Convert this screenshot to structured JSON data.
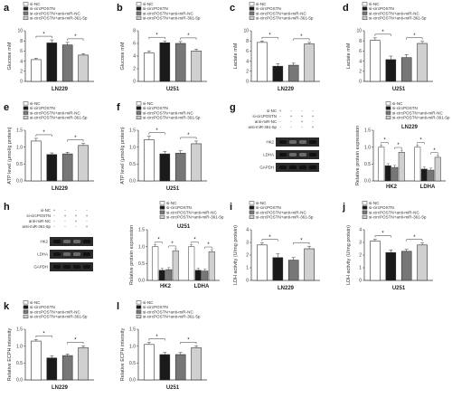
{
  "groups_four": [
    "si-NC",
    "si-circPOSTN",
    "si-circPOSTN+anti-miR-NC",
    "si-circPOSTN+anti-miR-361-5p"
  ],
  "colors": {
    "bar_fills": [
      "#ffffff",
      "#1a1a1a",
      "#777777",
      "#d0d0d0"
    ],
    "axis": "#333333"
  },
  "chart_data": [
    {
      "id": "a",
      "type": "bar",
      "label": "a",
      "cell": "LN229",
      "ylabel": "Glucose mM",
      "yticks": [
        "0",
        "2",
        "4",
        "6",
        "8",
        "10"
      ],
      "ylim": [
        0,
        10
      ],
      "legend": [
        "si-NC",
        "si-circPOSTN",
        "si-circPOSTN+anti-miR-NC",
        "si-circPOSTN+anti-miR-361-5p"
      ],
      "values": [
        4.3,
        7.6,
        7.2,
        5.2
      ],
      "errors": [
        0.3,
        0.6,
        0.5,
        0.3
      ],
      "sig": [
        [
          0,
          1,
          "*"
        ],
        [
          2,
          3,
          "*"
        ]
      ]
    },
    {
      "id": "b",
      "type": "bar",
      "label": "b",
      "cell": "U251",
      "ylabel": "Glucose mM",
      "yticks": [
        "0",
        "2",
        "4",
        "6",
        "8"
      ],
      "ylim": [
        0,
        8
      ],
      "legend": [
        "si-NC",
        "si-circPOSTN",
        "si-circPOSTN+anti-miR-NC",
        "si-circPOSTN+anti-miR-361-5p"
      ],
      "values": [
        4.5,
        6.1,
        6.0,
        4.8
      ],
      "errors": [
        0.3,
        0.3,
        0.3,
        0.3
      ],
      "sig": [
        [
          0,
          1,
          "*"
        ],
        [
          2,
          3,
          "*"
        ]
      ]
    },
    {
      "id": "c",
      "type": "bar",
      "label": "c",
      "cell": "LN229",
      "ylabel": "Lactate mM",
      "yticks": [
        "0",
        "2",
        "4",
        "6",
        "8",
        "10"
      ],
      "ylim": [
        0,
        10
      ],
      "legend": [
        "si-NC",
        "si-circPOSTN",
        "si-circPOSTN+anti-miR-NC",
        "si-circPOSTN+anti-miR-361-5p"
      ],
      "values": [
        7.7,
        3.0,
        3.2,
        7.4
      ],
      "errors": [
        0.3,
        0.5,
        0.4,
        0.3
      ],
      "sig": [
        [
          0,
          1,
          "*"
        ],
        [
          2,
          3,
          "*"
        ]
      ]
    },
    {
      "id": "d",
      "type": "bar",
      "label": "d",
      "cell": "U251",
      "ylabel": "Lactate mM",
      "yticks": [
        "0",
        "2",
        "4",
        "6",
        "8",
        "10"
      ],
      "ylim": [
        0,
        10
      ],
      "legend": [
        "si-NC",
        "si-circPOSTN",
        "si-circPOSTN+anti-miR-NC",
        "si-circPOSTN+anti-miR-361-5p"
      ],
      "values": [
        8.1,
        4.3,
        4.7,
        7.5
      ],
      "errors": [
        0.5,
        0.7,
        0.6,
        0.4
      ],
      "sig": [
        [
          0,
          1,
          "*"
        ],
        [
          2,
          3,
          "*"
        ]
      ]
    },
    {
      "id": "e",
      "type": "bar",
      "label": "e",
      "cell": "LN229",
      "ylabel": "ATP level (μmol/g protein)",
      "yticks": [
        "0.0",
        "0.5",
        "1.0",
        "1.5"
      ],
      "ylim": [
        0,
        1.5
      ],
      "legend": [
        "si-NC",
        "si-circPOSTN",
        "si-circPOSTN+anti-miR-NC",
        "si-circPOSTN+anti-miR-361-5p"
      ],
      "values": [
        1.18,
        0.78,
        0.8,
        1.05
      ],
      "errors": [
        0.08,
        0.05,
        0.05,
        0.06
      ],
      "sig": [
        [
          0,
          1,
          "*"
        ],
        [
          2,
          3,
          "*"
        ]
      ]
    },
    {
      "id": "f",
      "type": "bar",
      "label": "f",
      "cell": "U251",
      "ylabel": "ATP level (μmol/g protein)",
      "yticks": [
        "0.0",
        "0.5",
        "1.0",
        "1.5"
      ],
      "ylim": [
        0,
        1.5
      ],
      "legend": [
        "si-NC",
        "si-circPOSTN",
        "si-circPOSTN+anti-miR-NC",
        "si-circPOSTN+anti-miR-361-5p"
      ],
      "values": [
        1.22,
        0.8,
        0.82,
        1.1
      ],
      "errors": [
        0.1,
        0.07,
        0.07,
        0.08
      ],
      "sig": [
        [
          0,
          1,
          "*"
        ],
        [
          2,
          3,
          "*"
        ]
      ]
    },
    {
      "id": "g",
      "type": "bar",
      "label": "",
      "cell": "LN229",
      "ylabel": "Relative protein expression",
      "yticks": [
        "0.0",
        "0.5",
        "1.0",
        "1.5"
      ],
      "ylim": [
        0,
        1.5
      ],
      "legend": [
        "si-NC",
        "si-circPOSTN",
        "si-circPOSTN+anti-miR-NC",
        "si-circPOSTN+anti-miR-361-5p"
      ],
      "categories": [
        "HK2",
        "LDHA"
      ],
      "series": [
        {
          "name": "si-NC",
          "values": [
            1.0,
            1.0
          ]
        },
        {
          "name": "si-circPOSTN",
          "values": [
            0.45,
            0.35
          ]
        },
        {
          "name": "si-circPOSTN+anti-miR-NC",
          "values": [
            0.4,
            0.32
          ]
        },
        {
          "name": "si-circPOSTN+anti-miR-361-5p",
          "values": [
            0.85,
            0.7
          ]
        }
      ],
      "sig": [
        [
          "0:0",
          "0:1",
          "*"
        ],
        [
          "0:2",
          "0:3",
          "*"
        ],
        [
          "1:0",
          "1:1",
          "*"
        ],
        [
          "1:2",
          "1:3",
          "*"
        ]
      ]
    },
    {
      "id": "h",
      "type": "bar",
      "label": "",
      "cell": "U251",
      "ylabel": "Relative protein expression",
      "yticks": [
        "0.0",
        "0.5",
        "1.0",
        "1.5"
      ],
      "ylim": [
        0,
        1.5
      ],
      "legend": [
        "si-NC",
        "si-circPOSTN",
        "si-circPOSTN+anti-miR-NC",
        "si-circPOSTN+anti-miR-361-5p"
      ],
      "categories": [
        "HK2",
        "LDHA"
      ],
      "series": [
        {
          "name": "si-NC",
          "values": [
            1.0,
            1.0
          ]
        },
        {
          "name": "si-circPOSTN",
          "values": [
            0.3,
            0.3
          ]
        },
        {
          "name": "si-circPOSTN+anti-miR-NC",
          "values": [
            0.32,
            0.28
          ]
        },
        {
          "name": "si-circPOSTN+anti-miR-361-5p",
          "values": [
            0.88,
            0.85
          ]
        }
      ],
      "sig": [
        [
          "0:0",
          "0:1",
          "*"
        ],
        [
          "0:2",
          "0:3",
          "*"
        ],
        [
          "1:0",
          "1:1",
          "*"
        ],
        [
          "1:2",
          "1:3",
          "*"
        ]
      ]
    },
    {
      "id": "i",
      "type": "bar",
      "label": "i",
      "cell": "LN229",
      "ylabel": "LDH activity (U/mg protein)",
      "yticks": [
        "0",
        "1",
        "2",
        "3",
        "4"
      ],
      "ylim": [
        0,
        4
      ],
      "legend": [
        "si-NC",
        "si-circPOSTN",
        "si-circPOSTN+anti-miR-NC",
        "si-circPOSTN+anti-miR-361-5p"
      ],
      "values": [
        2.8,
        1.8,
        1.6,
        2.5
      ],
      "errors": [
        0.15,
        0.3,
        0.2,
        0.2
      ],
      "sig": [
        [
          0,
          1,
          "*"
        ],
        [
          2,
          3,
          "*"
        ]
      ]
    },
    {
      "id": "j",
      "type": "bar",
      "label": "j",
      "cell": "U251",
      "ylabel": "LDH activity (U/mg protein)",
      "yticks": [
        "0",
        "1",
        "2",
        "3",
        "4"
      ],
      "ylim": [
        0,
        4
      ],
      "legend": [
        "si-NC",
        "si-circPOSTN",
        "si-circPOSTN+anti-miR-NC",
        "si-circPOSTN+anti-miR-361-5p"
      ],
      "values": [
        3.1,
        2.2,
        2.3,
        2.8
      ],
      "errors": [
        0.15,
        0.2,
        0.15,
        0.15
      ],
      "sig": [
        [
          0,
          1,
          "*"
        ],
        [
          2,
          3,
          "*"
        ]
      ]
    },
    {
      "id": "k",
      "type": "bar",
      "label": "k",
      "cell": "LN229",
      "ylabel": "Relative ECPH intensity",
      "yticks": [
        "0.0",
        "0.5",
        "1.0",
        "1.5"
      ],
      "ylim": [
        0,
        1.5
      ],
      "legend": [
        "si-NC",
        "si-circPOSTN",
        "si-circPOSTN+anti-miR-NC",
        "si-circPOSTN+anti-miR-361-5p"
      ],
      "values": [
        1.15,
        0.65,
        0.72,
        0.95
      ],
      "errors": [
        0.05,
        0.06,
        0.05,
        0.06
      ],
      "sig": [
        [
          0,
          1,
          "*"
        ],
        [
          2,
          3,
          "*"
        ]
      ]
    },
    {
      "id": "l",
      "type": "bar",
      "label": "l",
      "cell": "U251",
      "ylabel": "Relative ECPH intensity",
      "yticks": [
        "0.0",
        "0.5",
        "1.0",
        "1.5"
      ],
      "ylim": [
        0,
        1.5
      ],
      "legend": [
        "si-NC",
        "si-circPOSTN",
        "si-circPOSTN+anti-miR-NC",
        "si-circPOSTN+anti-miR-361-5p"
      ],
      "values": [
        1.05,
        0.75,
        0.75,
        0.95
      ],
      "errors": [
        0.06,
        0.06,
        0.06,
        0.06
      ],
      "sig": [
        [
          0,
          1,
          "*"
        ],
        [
          2,
          3,
          "*"
        ]
      ]
    }
  ],
  "western": {
    "g": {
      "label": "g",
      "treat_rows": [
        "si-NC",
        "si-circPOSTN",
        "anti-miR-NC",
        "anti-miR-361-5p"
      ],
      "treat_signs": [
        [
          "+",
          "-",
          "-",
          "-"
        ],
        [
          "-",
          "+",
          "+",
          "+"
        ],
        [
          "-",
          "-",
          "+",
          "-"
        ],
        [
          "-",
          "-",
          "-",
          "+"
        ]
      ],
      "bands": [
        "HK2",
        "LDHA",
        "GAPDH"
      ]
    },
    "h": {
      "label": "h",
      "treat_rows": [
        "si-NC",
        "si-circPOSTN",
        "anti-miR-NC",
        "anti-miR-361-5p"
      ],
      "treat_signs": [
        [
          "+",
          "-",
          "-",
          "-"
        ],
        [
          "-",
          "+",
          "+",
          "+"
        ],
        [
          "-",
          "-",
          "+",
          "-"
        ],
        [
          "-",
          "-",
          "-",
          "+"
        ]
      ],
      "bands": [
        "HK2",
        "LDHA",
        "GAPDH"
      ]
    }
  }
}
